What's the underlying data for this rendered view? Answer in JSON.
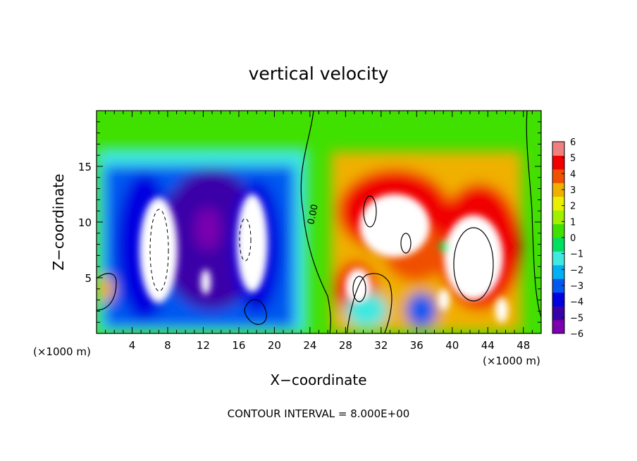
{
  "chart_data": {
    "type": "heatmap",
    "title": "vertical velocity",
    "xlabel": "X−coordinate",
    "ylabel": "Z−coordinate",
    "x_unit_left": "(×1000 m)",
    "x_unit_right": "(×1000 m)",
    "footer": "CONTOUR INTERVAL = 8.000E+00",
    "contour_label": "0.00",
    "xlim": [
      0,
      50
    ],
    "ylim": [
      0,
      20
    ],
    "x_ticks": [
      4,
      8,
      12,
      16,
      20,
      24,
      28,
      32,
      36,
      40,
      44,
      48
    ],
    "x_tick_labels": [
      "4",
      "8",
      "12",
      "16",
      "20",
      "24",
      "28",
      "32",
      "36",
      "40",
      "44",
      "48"
    ],
    "y_ticks": [
      5,
      10,
      15
    ],
    "y_tick_labels": [
      "5",
      "10",
      "15"
    ],
    "colorbar": {
      "min": -6,
      "max": 6,
      "tick_values": [
        6,
        5,
        4,
        3,
        2,
        1,
        0,
        -1,
        -2,
        -3,
        -4,
        -5,
        -6
      ],
      "tick_labels": [
        "6",
        "5",
        "4",
        "3",
        "2",
        "1",
        "0",
        "−1",
        "−2",
        "−3",
        "−4",
        "−5",
        "−6"
      ],
      "colors": [
        "#7a00b0",
        "#3a00a8",
        "#0000e0",
        "#0058f0",
        "#00b0f0",
        "#40e8e0",
        "#00e060",
        "#40e000",
        "#a0f000",
        "#e8f000",
        "#f0b000",
        "#f05000",
        "#f00000",
        "#f08080"
      ]
    },
    "features": [
      {
        "kind": "downdraft",
        "x": 7,
        "z": 7.5,
        "strength": -12
      },
      {
        "kind": "downdraft",
        "x": 14,
        "z": 9,
        "strength": -5
      },
      {
        "kind": "downdraft",
        "x": 17.5,
        "z": 8,
        "strength": -12
      },
      {
        "kind": "updraft",
        "x": 31.5,
        "z": 10.5,
        "strength": 10
      },
      {
        "kind": "updraft",
        "x": 42.5,
        "z": 7,
        "strength": 12
      },
      {
        "kind": "updraft",
        "x": 29.5,
        "z": 4.5,
        "strength": 8
      }
    ]
  }
}
